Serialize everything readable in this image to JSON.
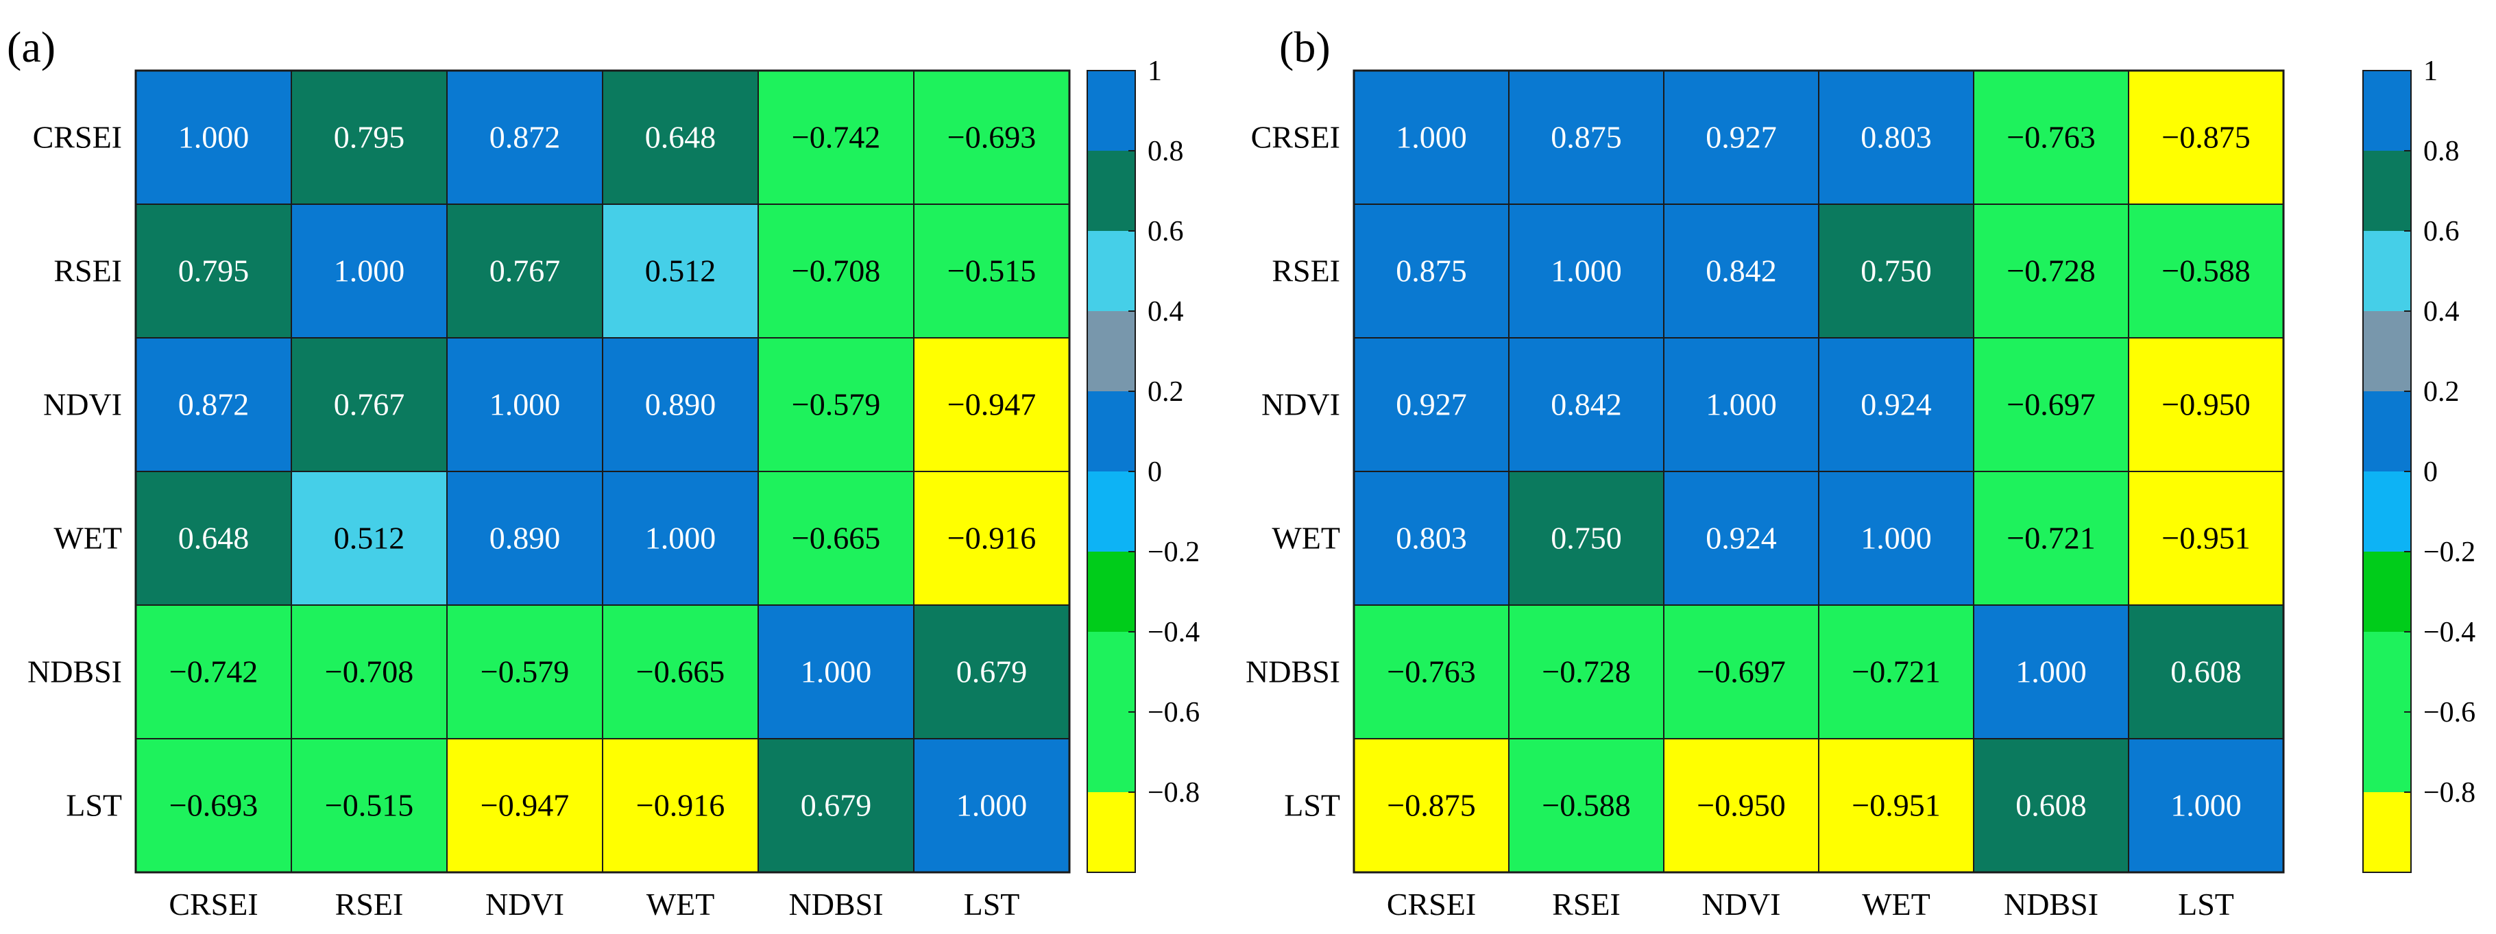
{
  "chart_data": [
    {
      "type": "heatmap",
      "panel_label": "(a)",
      "labels": [
        "CRSEI",
        "RSEI",
        "NDVI",
        "WET",
        "NDBSI",
        "LST"
      ],
      "values": [
        [
          "1.000",
          "0.795",
          "0.872",
          "0.648",
          "−0.742",
          "−0.693"
        ],
        [
          "0.795",
          "1.000",
          "0.767",
          "0.512",
          "−0.708",
          "−0.515"
        ],
        [
          "0.872",
          "0.767",
          "1.000",
          "0.890",
          "−0.579",
          "−0.947"
        ],
        [
          "0.648",
          "0.512",
          "0.890",
          "1.000",
          "−0.665",
          "−0.916"
        ],
        [
          "−0.742",
          "−0.708",
          "−0.579",
          "−0.665",
          "1.000",
          "0.679"
        ],
        [
          "−0.693",
          "−0.515",
          "−0.947",
          "−0.916",
          "0.679",
          "1.000"
        ]
      ]
    },
    {
      "type": "heatmap",
      "panel_label": "(b)",
      "labels": [
        "CRSEI",
        "RSEI",
        "NDVI",
        "WET",
        "NDBSI",
        "LST"
      ],
      "values": [
        [
          "1.000",
          "0.875",
          "0.927",
          "0.803",
          "−0.763",
          "−0.875"
        ],
        [
          "0.875",
          "1.000",
          "0.842",
          "0.750",
          "−0.728",
          "−0.588"
        ],
        [
          "0.927",
          "0.842",
          "1.000",
          "0.924",
          "−0.697",
          "−0.950"
        ],
        [
          "0.803",
          "0.750",
          "0.924",
          "1.000",
          "−0.721",
          "−0.951"
        ],
        [
          "−0.763",
          "−0.728",
          "−0.697",
          "−0.721",
          "1.000",
          "0.608"
        ],
        [
          "−0.875",
          "−0.588",
          "−0.950",
          "−0.951",
          "0.608",
          "1.000"
        ]
      ]
    }
  ],
  "colorbar": {
    "range": [
      -1,
      1
    ],
    "ticks": [
      "1",
      "0.8",
      "0.6",
      "0.4",
      "0.2",
      "0",
      "−0.2",
      "−0.4",
      "−0.6",
      "−0.8"
    ],
    "tick_values": [
      1,
      0.8,
      0.6,
      0.4,
      0.2,
      0,
      -0.2,
      -0.4,
      -0.6,
      -0.8
    ],
    "bands": [
      {
        "from": 0.8,
        "to": 1.0,
        "color": "#0a79d1"
      },
      {
        "from": 0.6,
        "to": 0.8,
        "color": "#0b7a5e"
      },
      {
        "from": 0.4,
        "to": 0.6,
        "color": "#45cfe8"
      },
      {
        "from": 0.2,
        "to": 0.4,
        "color": "#7897ac"
      },
      {
        "from": 0.0,
        "to": 0.2,
        "color": "#0a79d1"
      },
      {
        "from": -0.2,
        "to": 0.0,
        "color": "#0db3f5"
      },
      {
        "from": -0.4,
        "to": -0.2,
        "color": "#00cc1a"
      },
      {
        "from": -0.6,
        "to": -0.4,
        "color": "#1ef25c"
      },
      {
        "from": -0.8,
        "to": -0.6,
        "color": "#1ef25c"
      },
      {
        "from": -1.0,
        "to": -0.8,
        "color": "#ffff00"
      }
    ],
    "light_text_color": "#ffffff",
    "dark_text_color": "#000000"
  }
}
